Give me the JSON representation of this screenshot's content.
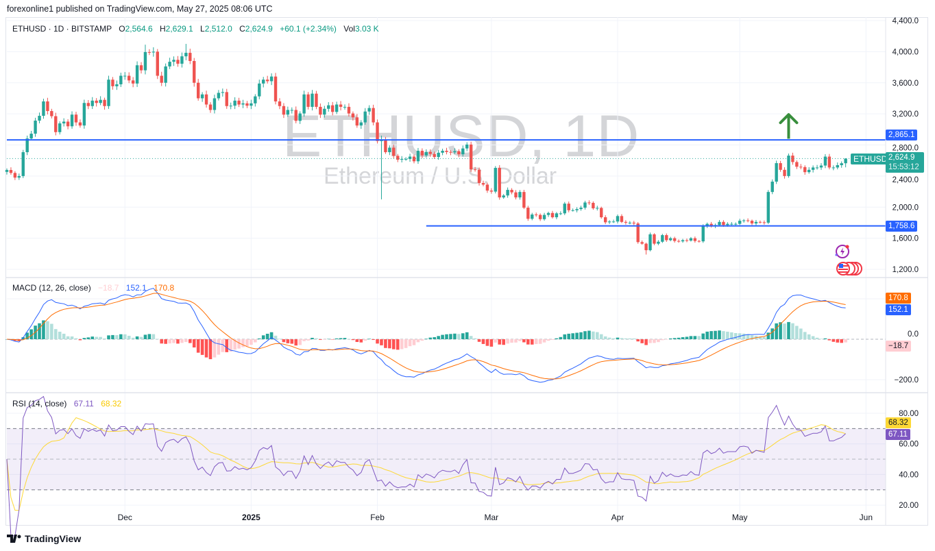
{
  "header": {
    "published": "forexonline1 published on TradingView.com, May 27, 2025 08:06 UTC"
  },
  "legend": {
    "symbol": "ETHUSD · 1D · BITSTAMP",
    "o_label": "O",
    "o": "2,564.6",
    "h_label": "H",
    "h": "2,629.1",
    "l_label": "L",
    "l": "2,512.0",
    "c_label": "C",
    "c": "2,624.9",
    "change": "+60.1 (+2.34%)",
    "vol_label": "Vol",
    "vol": "3.03 K"
  },
  "watermark": {
    "title": "ETHUSD, 1D",
    "subtitle": "Ethereum / U.S. Dollar"
  },
  "colors": {
    "up": "#26a69a",
    "down": "#ef5350",
    "hline": "#2962ff",
    "arrow": "#388e3c",
    "macd": "#2962ff",
    "signal": "#ff6d00",
    "hist_up_strong": "#26a69a",
    "hist_up_weak": "#b2dfdb",
    "hist_down_strong": "#ff5252",
    "hist_down_weak": "#ffcdd2",
    "rsi": "#7e57c2",
    "rsi_ma": "#fdd835",
    "last_price": "#26a69a"
  },
  "price_axis": {
    "ticks": [
      {
        "value": 4400,
        "label": "4,400.0"
      },
      {
        "value": 4000,
        "label": "4,000.0"
      },
      {
        "value": 3600,
        "label": "3,600.0"
      },
      {
        "value": 3200,
        "label": "3,200.0"
      },
      {
        "value": 2800,
        "label": "2,800.0"
      },
      {
        "value": 2400,
        "label": "2,400.0"
      },
      {
        "value": 2000,
        "label": "2,000.0"
      },
      {
        "value": 1600,
        "label": "1,600.0"
      },
      {
        "value": 1200,
        "label": "1,200.0"
      }
    ],
    "last_symbol": "ETHUSD",
    "last_price": "2,624.9",
    "countdown": "15:53:12"
  },
  "time_axis": [
    {
      "date": "2024-12-01",
      "label": "Dec",
      "bold": false
    },
    {
      "date": "2025-01-01",
      "label": "2025",
      "bold": true
    },
    {
      "date": "2025-02-01",
      "label": "Feb",
      "bold": false
    },
    {
      "date": "2025-03-01",
      "label": "Mar",
      "bold": false
    },
    {
      "date": "2025-04-01",
      "label": "Apr",
      "bold": false
    },
    {
      "date": "2025-05-01",
      "label": "May",
      "bold": false
    },
    {
      "date": "2025-06-01",
      "label": "Jun",
      "bold": false
    }
  ],
  "drawings": {
    "hlines": [
      {
        "price": 2865.1,
        "label": "2,865.1",
        "from": "2024-11-02"
      },
      {
        "price": 1758.6,
        "label": "1,758.6",
        "from": "2025-02-13"
      }
    ],
    "arrow": {
      "date": "2025-05-13",
      "from_price": 2880,
      "to_price": 3200,
      "direction": "up"
    }
  },
  "macd": {
    "title": "MACD (12, 26, close)",
    "hist": "−18.7",
    "macd": "152.1",
    "signal": "170.8",
    "axis": [
      {
        "value": 0,
        "label": "0.0"
      },
      {
        "value": -200,
        "label": "−200.0"
      }
    ]
  },
  "rsi": {
    "title": "RSI (14, close)",
    "rsi": "67.11",
    "ma": "68.32",
    "axis": [
      {
        "value": 80,
        "label": "80.00"
      },
      {
        "value": 60,
        "label": "60.00"
      },
      {
        "value": 40,
        "label": "40.00"
      },
      {
        "value": 20,
        "label": "20.00"
      }
    ],
    "bands": [
      70,
      50,
      30
    ]
  },
  "footer": {
    "logo": "TradingView"
  },
  "chart_data": {
    "type": "candlestick",
    "symbol": "ETHUSD",
    "interval": "1D",
    "last_candle": {
      "open": 2564.6,
      "high": 2629.1,
      "low": 2512.0,
      "close": 2624.9
    },
    "months": [
      {
        "month": "2024-11",
        "first_day": 2,
        "close": [
          2478,
          2440,
          2380,
          2400,
          2707,
          2883,
          2945,
          3113,
          3175,
          3360,
          3236,
          3170,
          2965,
          3077,
          3100,
          3040,
          3190,
          3090,
          3050,
          3340,
          3300,
          3370,
          3340,
          3380,
          3300,
          3640,
          3555,
          3580,
          3690
        ]
      },
      {
        "month": "2024-12",
        "first_day": 1,
        "close": [
          3690,
          3630,
          3590,
          3825,
          3760,
          3995,
          3990,
          4000,
          3690,
          3600,
          3810,
          3870,
          3895,
          3845,
          3940,
          3985,
          3880,
          3600,
          3400,
          3450,
          3320,
          3250,
          3400,
          3470,
          3480,
          3300,
          3305,
          3370,
          3320,
          3335,
          3305
        ]
      },
      {
        "month": "2025-01",
        "first_day": 1,
        "close": [
          3335,
          3425,
          3590,
          3640,
          3620,
          3680,
          3360,
          3300,
          3190,
          3250,
          3250,
          3110,
          3205,
          3450,
          3290,
          3460,
          3290,
          3190,
          3265,
          3310,
          3225,
          3320,
          3290,
          3290,
          3205,
          3155,
          3050,
          3090,
          3230,
          3275,
          3090
        ]
      },
      {
        "month": "2025-02",
        "first_day": 1,
        "close": [
          2850,
          2865,
          2707,
          2765,
          2660,
          2610,
          2620,
          2620,
          2650,
          2590,
          2725,
          2665,
          2710,
          2685,
          2645,
          2700,
          2725,
          2710,
          2705,
          2720,
          2680,
          2755,
          2805,
          2486,
          2480,
          2310,
          2290,
          2213
        ]
      },
      {
        "month": "2025-03",
        "first_day": 1,
        "close": [
          2200,
          2505,
          2125,
          2150,
          2222,
          2190,
          2125,
          2195,
          1993,
          1850,
          1905,
          1900,
          1845,
          1900,
          1925,
          1870,
          1920,
          1920,
          2045,
          1960,
          1960,
          1975,
          1993,
          2060,
          2055,
          1985,
          1990,
          1870,
          1805,
          1815,
          1815
        ]
      },
      {
        "month": "2025-04",
        "first_day": 1,
        "close": [
          1885,
          1810,
          1800,
          1800,
          1790,
          1550,
          1530,
          1446,
          1650,
          1530,
          1555,
          1640,
          1575,
          1600,
          1565,
          1560,
          1575,
          1570,
          1600,
          1565,
          1560,
          1755,
          1785,
          1755,
          1770,
          1810,
          1770,
          1785,
          1785,
          1785
        ]
      },
      {
        "month": "2025-05",
        "first_day": 1,
        "close": [
          1825,
          1830,
          1825,
          1790,
          1810,
          1805,
          1800,
          2195,
          2328,
          2566,
          2480,
          2400,
          2663,
          2580,
          2520,
          2515,
          2450,
          2480,
          2510,
          2510,
          2535,
          2650,
          2510,
          2510,
          2540,
          2564.6,
          2624.9
        ]
      }
    ],
    "wicks": [
      {
        "date": "2024-12-16",
        "high": 4100
      },
      {
        "date": "2024-12-06",
        "high": 4090
      },
      {
        "date": "2025-02-02",
        "high": 2920,
        "low": 2100
      },
      {
        "date": "2025-04-08",
        "low": 1390
      },
      {
        "date": "2025-05-27",
        "high": 2629.1,
        "low": 2512.0
      }
    ],
    "price_range": [
      1200,
      4400
    ]
  }
}
